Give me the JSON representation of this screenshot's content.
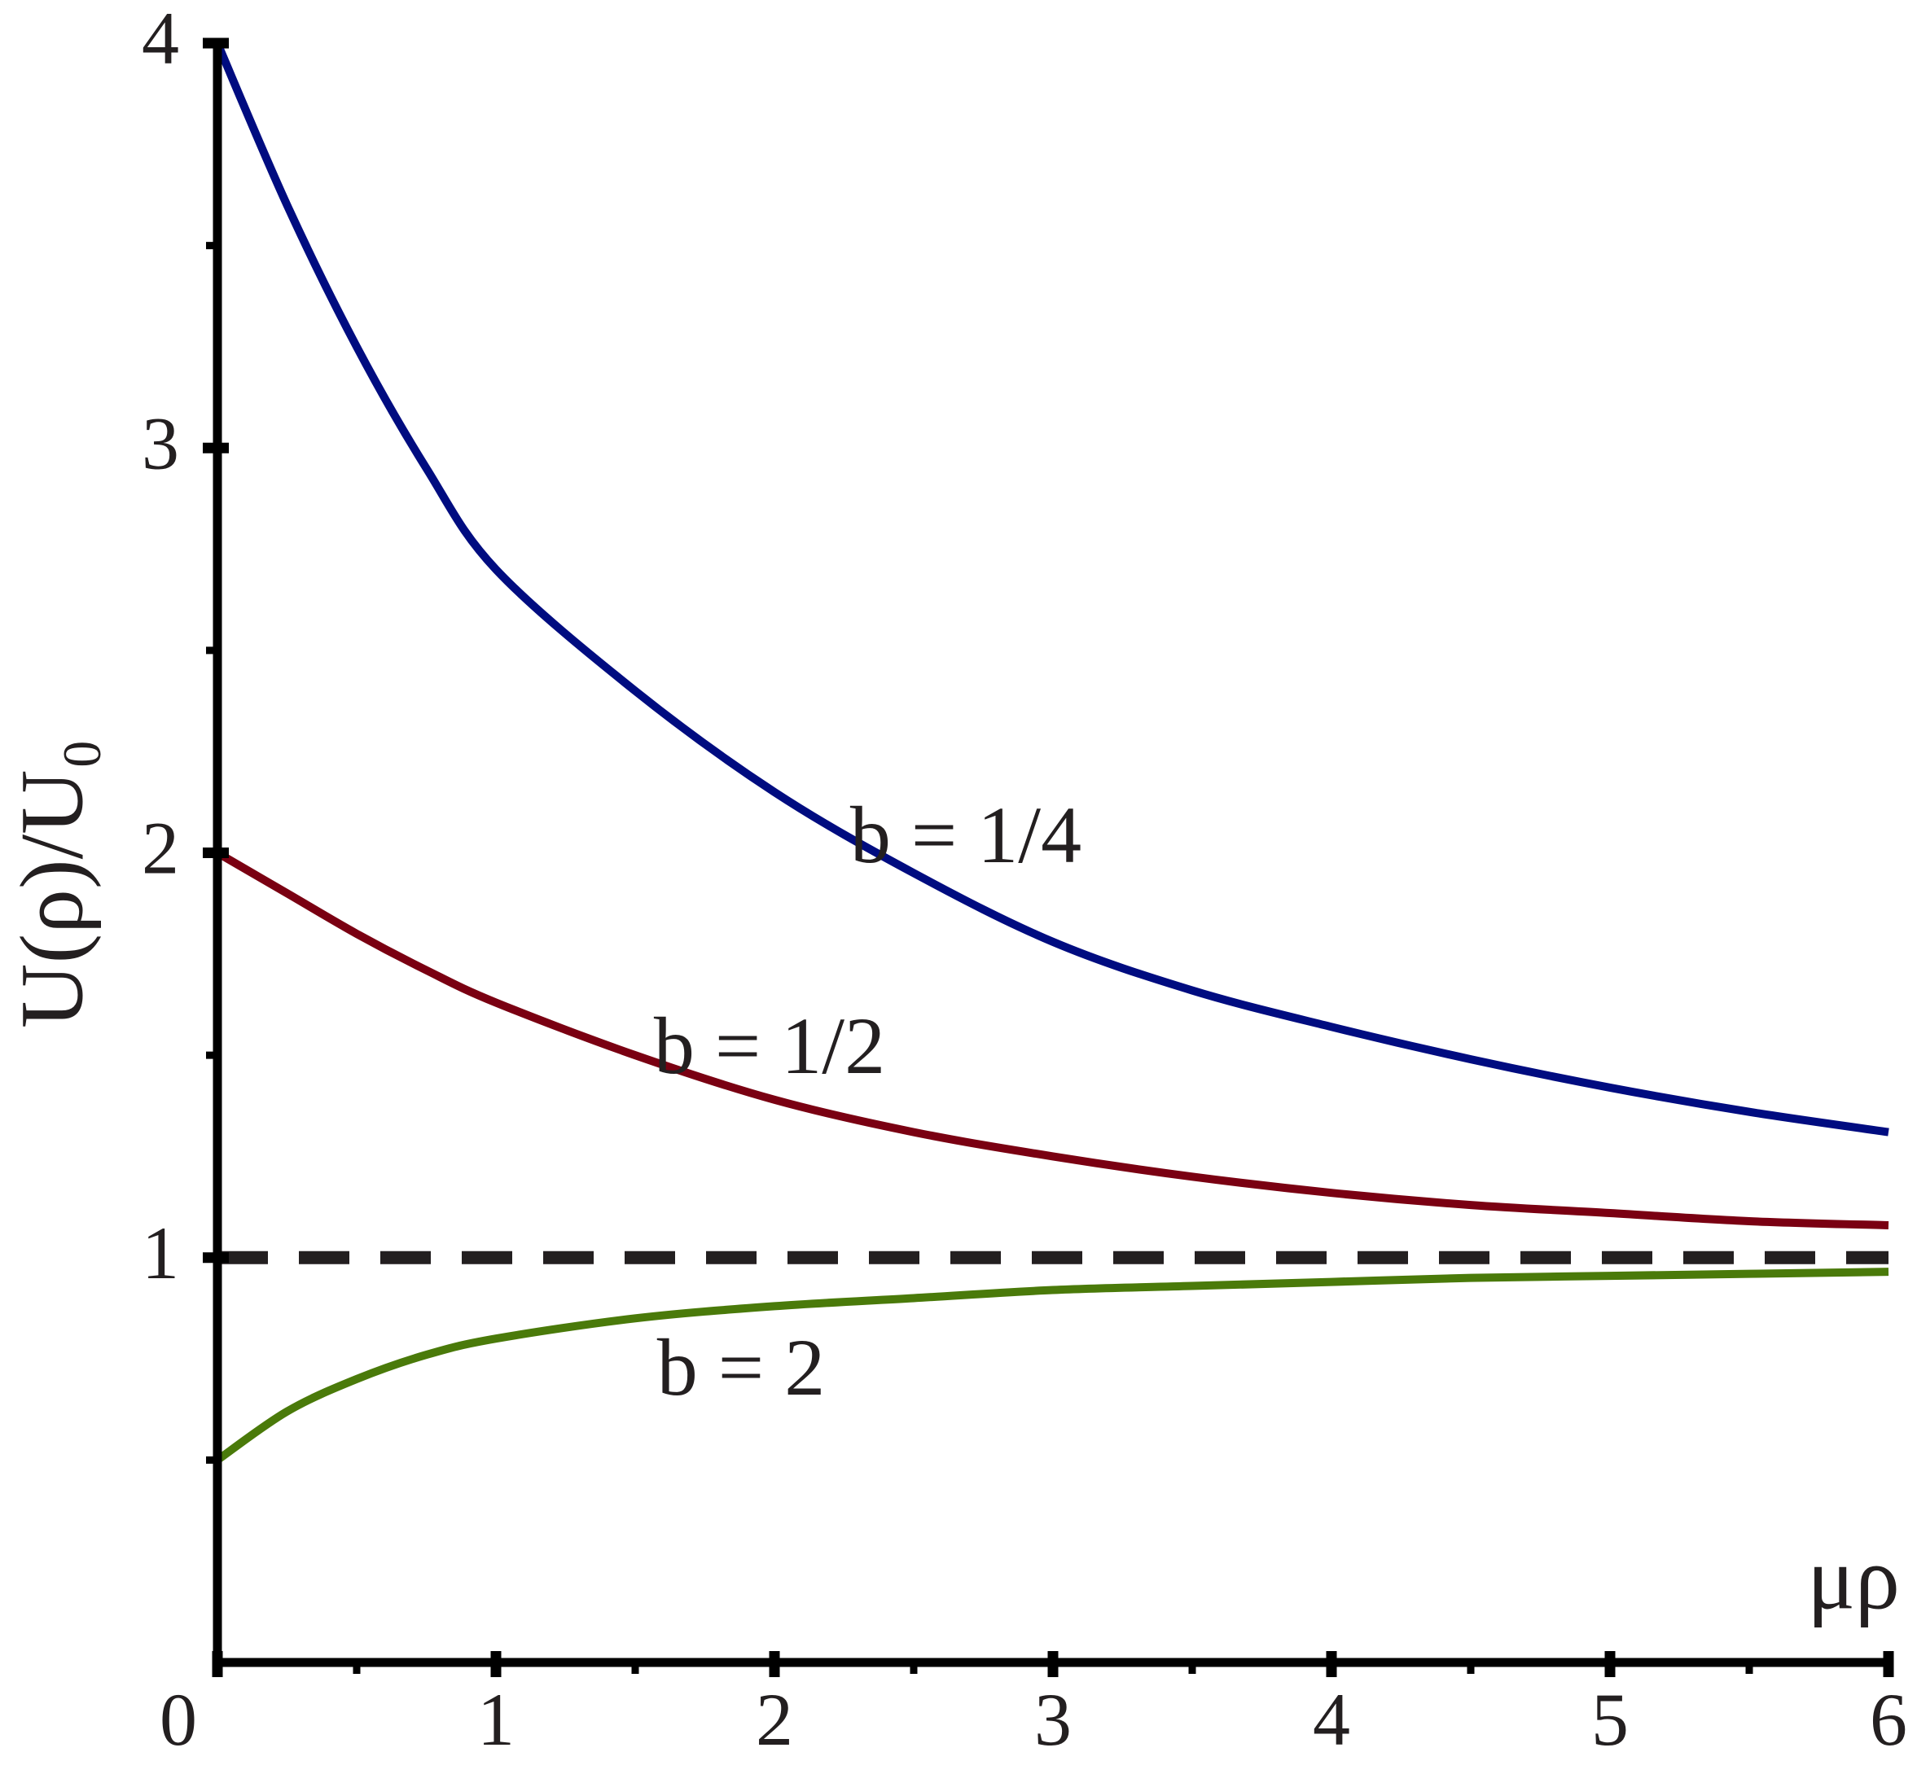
{
  "chart_data": {
    "type": "line",
    "xlabel": "μρ",
    "ylabel": "U(ρ)/U₀",
    "x": [
      0,
      0.25,
      0.5,
      0.75,
      1,
      1.5,
      2,
      2.5,
      3,
      3.5,
      4,
      4.5,
      5,
      5.5,
      6
    ],
    "series": [
      {
        "name": "b = 1/4",
        "color": "#000c80",
        "values": [
          4.0,
          3.6,
          3.25,
          2.95,
          2.7,
          2.4,
          2.15,
          1.95,
          1.78,
          1.66,
          1.57,
          1.49,
          1.42,
          1.36,
          1.31
        ]
      },
      {
        "name": "b = 1/2",
        "color": "#7a0012",
        "values": [
          2.0,
          1.9,
          1.8,
          1.71,
          1.63,
          1.5,
          1.39,
          1.31,
          1.25,
          1.2,
          1.16,
          1.13,
          1.11,
          1.09,
          1.08
        ]
      },
      {
        "name": "b = 2",
        "color": "#4a7a0a",
        "values": [
          0.5,
          0.62,
          0.7,
          0.76,
          0.8,
          0.85,
          0.88,
          0.9,
          0.92,
          0.93,
          0.94,
          0.95,
          0.955,
          0.96,
          0.965
        ]
      }
    ],
    "hlines": [
      {
        "value": 1,
        "color": "#231f20",
        "dashed": true
      }
    ],
    "xlim": [
      0,
      6
    ],
    "ylim": [
      0,
      4
    ],
    "xticks": [
      0,
      1,
      2,
      3,
      4,
      5,
      6
    ],
    "yticks": [
      1,
      2,
      3,
      4
    ],
    "xminor": [
      0.5,
      1.5,
      2.5,
      3.5,
      4.5,
      5.5
    ],
    "yminor": [
      0.5,
      1.5,
      2.5,
      3.5
    ],
    "grid": false
  }
}
